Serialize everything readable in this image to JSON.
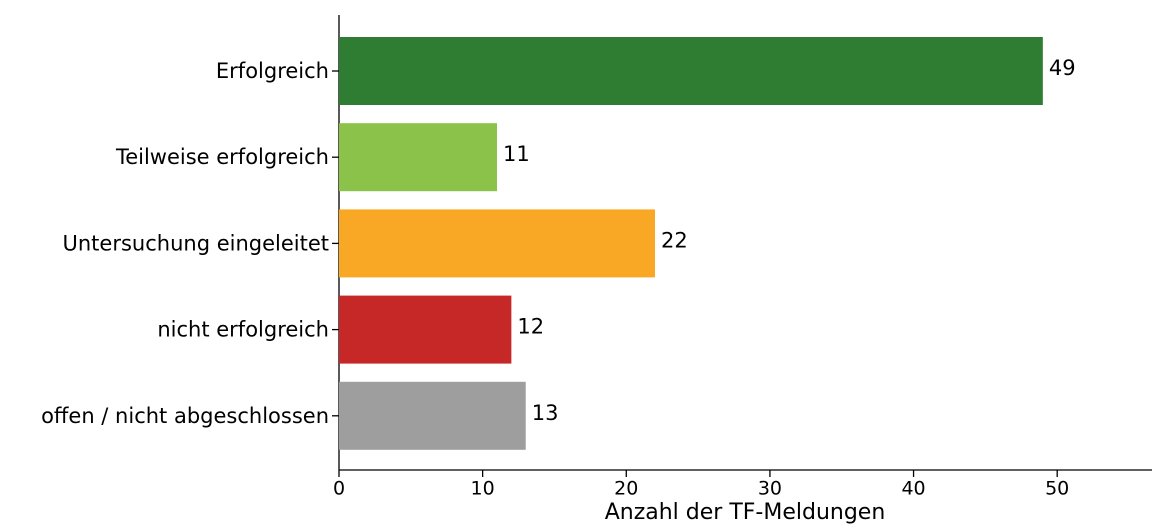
{
  "chart_data": {
    "type": "bar",
    "orientation": "horizontal",
    "categories": [
      "Erfolgreich",
      "Teilweise erfolgreich",
      "Untersuchung eingeleitet",
      "nicht erfolgreich",
      "offen / nicht abgeschlossen"
    ],
    "values": [
      49,
      11,
      22,
      12,
      13
    ],
    "colors": [
      "#2e7d32",
      "#8bc34a",
      "#f9a825",
      "#c62828",
      "#9e9e9e"
    ],
    "xlabel": "Anzahl der TF-Meldungen",
    "xlim": [
      0,
      56.6
    ],
    "xticks": [
      0,
      10,
      20,
      30,
      40,
      50
    ],
    "grid": false
  }
}
